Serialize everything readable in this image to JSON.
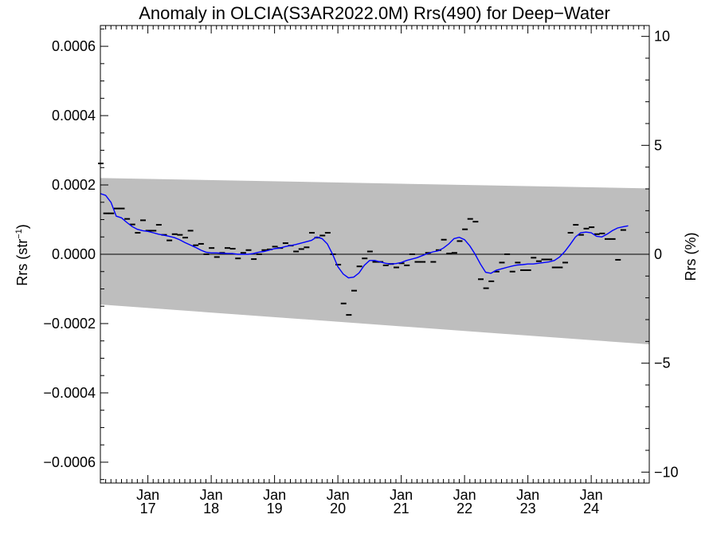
{
  "chart_data": {
    "type": "line",
    "title": "Anomaly in OLCIA(S3AR2022.0M) Rrs(490) for Deep−Water",
    "ylabel_left": "Rrs (str",
    "ylabel_left_sup": "−1",
    "ylabel_left_close": ")",
    "ylabel_right": "Rrs (%)",
    "x_start": "2016-04",
    "x_end": "2024-12",
    "ylim_left": [
      -0.00066,
      0.00066
    ],
    "ylim_right": [
      -10.5,
      10.5
    ],
    "grid": false,
    "x_ticks": [
      {
        "top": "Jan",
        "bottom": "17",
        "date": "2017-01"
      },
      {
        "top": "Jan",
        "bottom": "18",
        "date": "2018-01"
      },
      {
        "top": "Jan",
        "bottom": "19",
        "date": "2019-01"
      },
      {
        "top": "Jan",
        "bottom": "20",
        "date": "2020-01"
      },
      {
        "top": "Jan",
        "bottom": "21",
        "date": "2021-01"
      },
      {
        "top": "Jan",
        "bottom": "22",
        "date": "2022-01"
      },
      {
        "top": "Jan",
        "bottom": "23",
        "date": "2023-01"
      },
      {
        "top": "Jan",
        "bottom": "24",
        "date": "2024-01"
      }
    ],
    "y_ticks_left": [
      {
        "value": 0.0006,
        "label": "0.0006"
      },
      {
        "value": 0.0004,
        "label": "0.0004"
      },
      {
        "value": 0.0002,
        "label": "0.0002"
      },
      {
        "value": 0.0,
        "label": "0.0000"
      },
      {
        "value": -0.0002,
        "label": "−0.0002"
      },
      {
        "value": -0.0004,
        "label": "−0.0004"
      },
      {
        "value": -0.0006,
        "label": "−0.0006"
      }
    ],
    "y_ticks_right": [
      {
        "value": 10,
        "label": "10"
      },
      {
        "value": 5,
        "label": "5"
      },
      {
        "value": 0,
        "label": "0"
      },
      {
        "value": -5,
        "label": "−5"
      },
      {
        "value": -10,
        "label": "−10"
      }
    ],
    "band": {
      "color": "#bebebe",
      "upper": [
        [
          "2016-04",
          0.00022
        ],
        [
          "2024-12",
          0.00019
        ]
      ],
      "lower": [
        [
          "2016-04",
          -0.000145
        ],
        [
          "2024-12",
          -0.00026
        ]
      ]
    },
    "zero_line_color": "#000000",
    "series": [
      {
        "kind": "monthly_marks",
        "color": "#000000",
        "points": [
          [
            "2016-04",
            0.000262
          ],
          [
            "2016-05",
            0.000118
          ],
          [
            "2016-06",
            0.000118
          ],
          [
            "2016-07",
            0.000132
          ],
          [
            "2016-08",
            0.000132
          ],
          [
            "2016-09",
            0.000102
          ],
          [
            "2016-10",
            8.6e-05
          ],
          [
            "2016-11",
            6.2e-05
          ],
          [
            "2016-12",
            9.8e-05
          ],
          [
            "2017-01",
            6.8e-05
          ],
          [
            "2017-02",
            6.8e-05
          ],
          [
            "2017-03",
            8.5e-05
          ],
          [
            "2017-04",
            5.6e-05
          ],
          [
            "2017-05",
            4e-05
          ],
          [
            "2017-06",
            5.8e-05
          ],
          [
            "2017-07",
            5.6e-05
          ],
          [
            "2017-08",
            4.8e-05
          ],
          [
            "2017-09",
            6.8e-05
          ],
          [
            "2017-10",
            2.6e-05
          ],
          [
            "2017-11",
            3e-05
          ],
          [
            "2017-12",
            0.0
          ],
          [
            "2018-01",
            1.8e-05
          ],
          [
            "2018-02",
            -8e-06
          ],
          [
            "2018-03",
            4e-06
          ],
          [
            "2018-04",
            1.8e-05
          ],
          [
            "2018-05",
            1.6e-05
          ],
          [
            "2018-06",
            -1.2e-05
          ],
          [
            "2018-07",
            4e-06
          ],
          [
            "2018-08",
            1.2e-05
          ],
          [
            "2018-09",
            -1.4e-05
          ],
          [
            "2018-10",
            0.0
          ],
          [
            "2018-11",
            1.2e-05
          ],
          [
            "2018-12",
            1.4e-05
          ],
          [
            "2019-01",
            2.2e-05
          ],
          [
            "2019-02",
            1.8e-05
          ],
          [
            "2019-03",
            3.2e-05
          ],
          [
            "2019-04",
            2.5e-05
          ],
          [
            "2019-05",
            8e-06
          ],
          [
            "2019-06",
            1.5e-05
          ],
          [
            "2019-07",
            2e-05
          ],
          [
            "2019-08",
            6.2e-05
          ],
          [
            "2019-09",
            4.8e-05
          ],
          [
            "2019-10",
            5.4e-05
          ],
          [
            "2019-11",
            6.2e-05
          ],
          [
            "2019-12",
            0.0
          ],
          [
            "2020-01",
            -3e-05
          ],
          [
            "2020-02",
            -0.000142
          ],
          [
            "2020-03",
            -0.000175
          ],
          [
            "2020-04",
            -0.000105
          ],
          [
            "2020-05",
            -3.5e-05
          ],
          [
            "2020-06",
            -1.2e-05
          ],
          [
            "2020-07",
            8e-06
          ],
          [
            "2020-08",
            -2.2e-05
          ],
          [
            "2020-09",
            -2.2e-05
          ],
          [
            "2020-10",
            -3.2e-05
          ],
          [
            "2020-11",
            -2.8e-05
          ],
          [
            "2020-12",
            -3.8e-05
          ],
          [
            "2021-01",
            -2.6e-05
          ],
          [
            "2021-02",
            -3.2e-05
          ],
          [
            "2021-03",
            0.0
          ],
          [
            "2021-04",
            -2.2e-05
          ],
          [
            "2021-05",
            -2.2e-05
          ],
          [
            "2021-06",
            4e-06
          ],
          [
            "2021-07",
            -2.2e-05
          ],
          [
            "2021-08",
            1.2e-05
          ],
          [
            "2021-09",
            4.2e-05
          ],
          [
            "2021-10",
            2e-06
          ],
          [
            "2021-11",
            4e-06
          ],
          [
            "2021-12",
            3.8e-05
          ],
          [
            "2022-01",
            7.2e-05
          ],
          [
            "2022-02",
            0.000102
          ],
          [
            "2022-03",
            9.4e-05
          ],
          [
            "2022-04",
            -7.2e-05
          ],
          [
            "2022-05",
            -9.8e-05
          ],
          [
            "2022-06",
            -7.8e-05
          ],
          [
            "2022-07",
            -5e-05
          ],
          [
            "2022-08",
            -2.4e-05
          ],
          [
            "2022-09",
            0.0
          ],
          [
            "2022-10",
            -5e-05
          ],
          [
            "2022-11",
            -2.4e-05
          ],
          [
            "2022-12",
            -4.6e-05
          ],
          [
            "2023-01",
            -4.6e-05
          ],
          [
            "2023-02",
            -1e-05
          ],
          [
            "2023-03",
            -2e-05
          ],
          [
            "2023-04",
            -1.5e-05
          ],
          [
            "2023-05",
            -1.5e-05
          ],
          [
            "2023-06",
            -3.8e-05
          ],
          [
            "2023-07",
            -3.8e-05
          ],
          [
            "2023-08",
            -2.4e-05
          ],
          [
            "2023-09",
            6.2e-05
          ],
          [
            "2023-10",
            8.5e-05
          ],
          [
            "2023-11",
            5.6e-05
          ],
          [
            "2023-12",
            7.4e-05
          ],
          [
            "2024-01",
            7.8e-05
          ],
          [
            "2024-02",
            5.8e-05
          ],
          [
            "2024-03",
            6e-05
          ],
          [
            "2024-04",
            4.4e-05
          ],
          [
            "2024-05",
            4.4e-05
          ],
          [
            "2024-06",
            -1.6e-05
          ],
          [
            "2024-07",
            7e-05
          ]
        ]
      },
      {
        "kind": "line",
        "color": "#0000ff",
        "points": [
          [
            "2016-04",
            0.000175
          ],
          [
            "2016-05",
            0.00017
          ],
          [
            "2016-06",
            0.00015
          ],
          [
            "2016-07",
            0.00011
          ],
          [
            "2016-08",
            0.000105
          ],
          [
            "2016-09",
            9.2e-05
          ],
          [
            "2016-10",
            8e-05
          ],
          [
            "2016-11",
            7.2e-05
          ],
          [
            "2016-12",
            6.8e-05
          ],
          [
            "2017-01",
            6.6e-05
          ],
          [
            "2017-02",
            6.2e-05
          ],
          [
            "2017-03",
            5.8e-05
          ],
          [
            "2017-04",
            5.5e-05
          ],
          [
            "2017-05",
            5.2e-05
          ],
          [
            "2017-06",
            4.8e-05
          ],
          [
            "2017-07",
            4.2e-05
          ],
          [
            "2017-08",
            3.4e-05
          ],
          [
            "2017-09",
            2.7e-05
          ],
          [
            "2017-10",
            2e-05
          ],
          [
            "2017-11",
            1.2e-05
          ],
          [
            "2017-12",
            6e-06
          ],
          [
            "2018-01",
            4e-06
          ],
          [
            "2018-02",
            4e-06
          ],
          [
            "2018-03",
            3e-06
          ],
          [
            "2018-04",
            2e-06
          ],
          [
            "2018-05",
            2e-06
          ],
          [
            "2018-06",
            0.0
          ],
          [
            "2018-07",
            0.0
          ],
          [
            "2018-08",
            0.0
          ],
          [
            "2018-09",
            2e-06
          ],
          [
            "2018-10",
            6e-06
          ],
          [
            "2018-11",
            8e-06
          ],
          [
            "2018-12",
            1.2e-05
          ],
          [
            "2019-01",
            1.6e-05
          ],
          [
            "2019-02",
            1.8e-05
          ],
          [
            "2019-03",
            2.2e-05
          ],
          [
            "2019-04",
            2.5e-05
          ],
          [
            "2019-05",
            2.8e-05
          ],
          [
            "2019-06",
            3.2e-05
          ],
          [
            "2019-07",
            3.6e-05
          ],
          [
            "2019-08",
            4e-05
          ],
          [
            "2019-09",
            5e-05
          ],
          [
            "2019-10",
            4.5e-05
          ],
          [
            "2019-11",
            3e-05
          ],
          [
            "2019-12",
            0.0
          ],
          [
            "2020-01",
            -3.6e-05
          ],
          [
            "2020-02",
            -5.7e-05
          ],
          [
            "2020-03",
            -6.8e-05
          ],
          [
            "2020-04",
            -6.6e-05
          ],
          [
            "2020-05",
            -5.4e-05
          ],
          [
            "2020-06",
            -3.2e-05
          ],
          [
            "2020-07",
            -1.8e-05
          ],
          [
            "2020-08",
            -1.8e-05
          ],
          [
            "2020-09",
            -2.2e-05
          ],
          [
            "2020-10",
            -2.6e-05
          ],
          [
            "2020-11",
            -2.8e-05
          ],
          [
            "2020-12",
            -2.7e-05
          ],
          [
            "2021-01",
            -2.4e-05
          ],
          [
            "2021-02",
            -1.8e-05
          ],
          [
            "2021-03",
            -1.4e-05
          ],
          [
            "2021-04",
            -1e-05
          ],
          [
            "2021-05",
            -4e-06
          ],
          [
            "2021-06",
            2e-06
          ],
          [
            "2021-07",
            7e-06
          ],
          [
            "2021-08",
            1e-05
          ],
          [
            "2021-09",
            1.8e-05
          ],
          [
            "2021-10",
            3e-05
          ],
          [
            "2021-11",
            4.5e-05
          ],
          [
            "2021-12",
            4.9e-05
          ],
          [
            "2022-01",
            4.2e-05
          ],
          [
            "2022-02",
            2.4e-05
          ],
          [
            "2022-03",
            0.0
          ],
          [
            "2022-04",
            -2.8e-05
          ],
          [
            "2022-05",
            -5.2e-05
          ],
          [
            "2022-06",
            -5.5e-05
          ],
          [
            "2022-07",
            -4.6e-05
          ],
          [
            "2022-08",
            -4.2e-05
          ],
          [
            "2022-09",
            -3.8e-05
          ],
          [
            "2022-10",
            -3.4e-05
          ],
          [
            "2022-11",
            -3.1e-05
          ],
          [
            "2022-12",
            -3e-05
          ],
          [
            "2023-01",
            -2.8e-05
          ],
          [
            "2023-02",
            -2.8e-05
          ],
          [
            "2023-03",
            -2.6e-05
          ],
          [
            "2023-04",
            -2.4e-05
          ],
          [
            "2023-05",
            -2.2e-05
          ],
          [
            "2023-06",
            -1.8e-05
          ],
          [
            "2023-07",
            -8e-06
          ],
          [
            "2023-08",
            8e-06
          ],
          [
            "2023-09",
            2.8e-05
          ],
          [
            "2023-10",
            5e-05
          ],
          [
            "2023-11",
            6.2e-05
          ],
          [
            "2023-12",
            6.4e-05
          ],
          [
            "2024-01",
            6.2e-05
          ],
          [
            "2024-02",
            5.2e-05
          ],
          [
            "2024-03",
            5e-05
          ],
          [
            "2024-04",
            5.8e-05
          ],
          [
            "2024-05",
            6.8e-05
          ],
          [
            "2024-06",
            7.6e-05
          ],
          [
            "2024-07",
            7.9e-05
          ],
          [
            "2024-08",
            8.2e-05
          ]
        ]
      }
    ]
  }
}
